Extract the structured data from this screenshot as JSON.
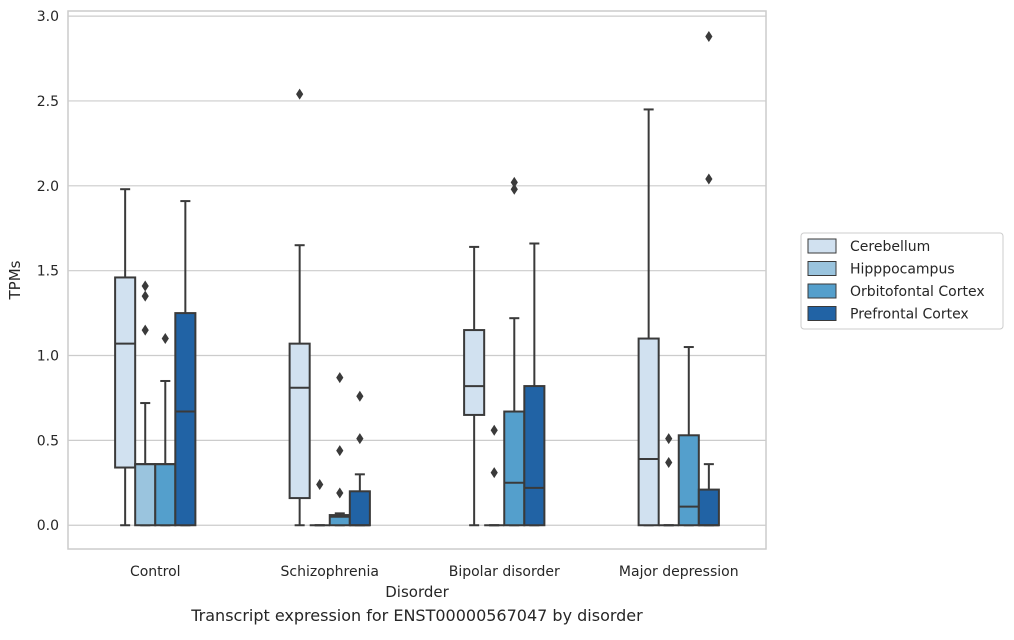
{
  "caption": "Transcript expression for ENST00000567047 by disorder",
  "chart_data": {
    "type": "boxplot",
    "title": "",
    "xlabel": "Disorder",
    "ylabel": "TPMs",
    "ylim": [
      -0.14,
      3.03
    ],
    "yticks": [
      0.0,
      0.5,
      1.0,
      1.5,
      2.0,
      2.5,
      3.0
    ],
    "ytick_labels": [
      "0.0",
      "0.5",
      "1.0",
      "1.5",
      "2.0",
      "2.5",
      "3.0"
    ],
    "grid": "horizontal",
    "legend_position": "right",
    "categories": [
      "Control",
      "Schizophrenia",
      "Bipolar disorder",
      "Major depression"
    ],
    "series": [
      {
        "name": "Cerebellum",
        "color": "#d1e1f0",
        "boxes": [
          {
            "whisker_low": 0.0,
            "q1": 0.34,
            "median": 1.07,
            "q3": 1.46,
            "whisker_high": 1.98,
            "outliers": []
          },
          {
            "whisker_low": 0.0,
            "q1": 0.16,
            "median": 0.81,
            "q3": 1.07,
            "whisker_high": 1.65,
            "outliers": [
              2.54
            ]
          },
          {
            "whisker_low": 0.0,
            "q1": 0.65,
            "median": 0.82,
            "q3": 1.15,
            "whisker_high": 1.64,
            "outliers": []
          },
          {
            "whisker_low": 0.0,
            "q1": 0.0,
            "median": 0.39,
            "q3": 1.1,
            "whisker_high": 2.45,
            "outliers": []
          }
        ]
      },
      {
        "name": "Hipppocampus",
        "color": "#9ac4de",
        "boxes": [
          {
            "whisker_low": 0.0,
            "q1": 0.0,
            "median": 0.36,
            "q3": 0.36,
            "whisker_high": 0.72,
            "outliers": [
              1.41,
              1.35,
              1.15
            ]
          },
          {
            "whisker_low": 0.0,
            "q1": 0.0,
            "median": 0.0,
            "q3": 0.0,
            "whisker_high": 0.0,
            "outliers": [
              0.24
            ]
          },
          {
            "whisker_low": 0.0,
            "q1": 0.0,
            "median": 0.0,
            "q3": 0.0,
            "whisker_high": 0.0,
            "outliers": [
              0.56,
              0.31
            ]
          },
          {
            "whisker_low": 0.0,
            "q1": 0.0,
            "median": 0.0,
            "q3": 0.0,
            "whisker_high": 0.0,
            "outliers": [
              0.51,
              0.37
            ]
          }
        ]
      },
      {
        "name": "Orbitofontal Cortex",
        "color": "#549fcc",
        "boxes": [
          {
            "whisker_low": 0.0,
            "q1": 0.0,
            "median": 0.36,
            "q3": 0.36,
            "whisker_high": 0.85,
            "outliers": [
              1.1
            ]
          },
          {
            "whisker_low": 0.0,
            "q1": 0.0,
            "median": 0.05,
            "q3": 0.06,
            "whisker_high": 0.07,
            "outliers": [
              0.87,
              0.44,
              0.19
            ]
          },
          {
            "whisker_low": 0.0,
            "q1": 0.0,
            "median": 0.25,
            "q3": 0.67,
            "whisker_high": 1.22,
            "outliers": [
              2.02,
              1.98
            ]
          },
          {
            "whisker_low": 0.0,
            "q1": 0.0,
            "median": 0.11,
            "q3": 0.53,
            "whisker_high": 1.05,
            "outliers": []
          }
        ]
      },
      {
        "name": "Prefrontal Cortex",
        "color": "#2163a5",
        "boxes": [
          {
            "whisker_low": 0.0,
            "q1": 0.0,
            "median": 0.67,
            "q3": 1.25,
            "whisker_high": 1.91,
            "outliers": []
          },
          {
            "whisker_low": 0.0,
            "q1": 0.0,
            "median": 0.0,
            "q3": 0.2,
            "whisker_high": 0.3,
            "outliers": [
              0.76,
              0.51
            ]
          },
          {
            "whisker_low": 0.0,
            "q1": 0.0,
            "median": 0.22,
            "q3": 0.82,
            "whisker_high": 1.66,
            "outliers": []
          },
          {
            "whisker_low": 0.0,
            "q1": 0.0,
            "median": 0.0,
            "q3": 0.21,
            "whisker_high": 0.36,
            "outliers": [
              2.88,
              2.04
            ]
          }
        ]
      }
    ]
  }
}
